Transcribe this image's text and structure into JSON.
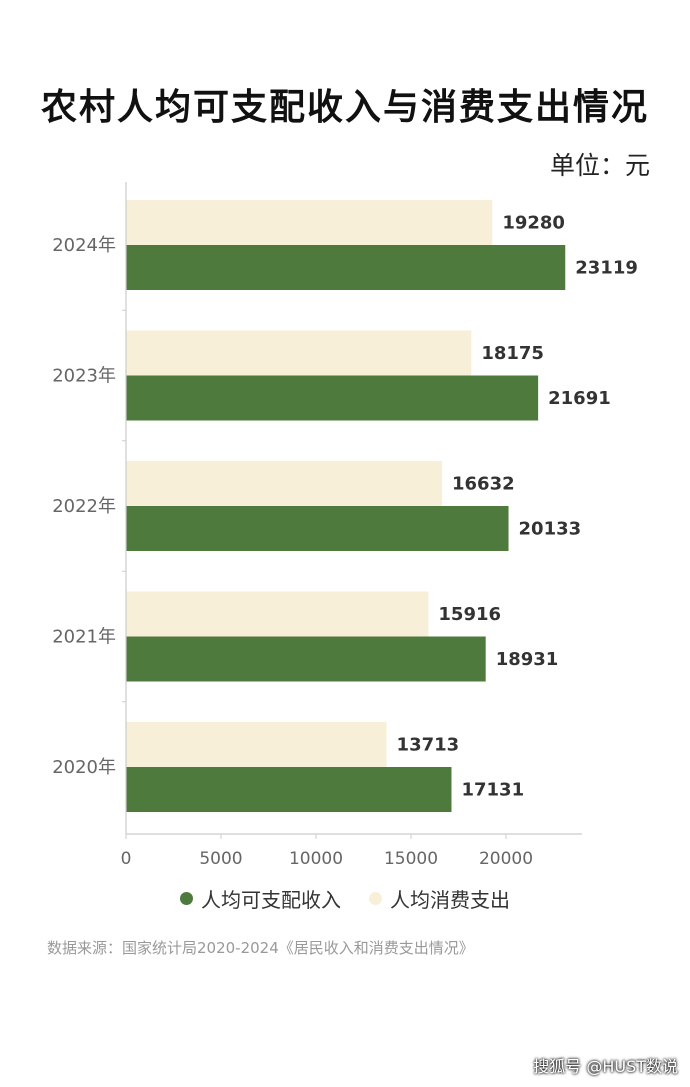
{
  "title": "农村人均可支配收入与消费支出情况",
  "unit_label": "单位：元",
  "source_note": "数据来源：国家统计局2020-2024《居民收入和消费支出情况》",
  "watermark": "搜狐号 @HUST数说",
  "colors": {
    "income": "#4e7a3e",
    "consumption": "#f7efd8",
    "axis": "#cccccc"
  },
  "chart_data": {
    "type": "bar",
    "orientation": "horizontal",
    "categories": [
      "2024年",
      "2023年",
      "2022年",
      "2021年",
      "2020年"
    ],
    "series": [
      {
        "name": "人均消费支出",
        "values": [
          19280,
          18175,
          16632,
          15916,
          13713
        ]
      },
      {
        "name": "人均可支配收入",
        "values": [
          23119,
          21691,
          20133,
          18931,
          17131
        ]
      }
    ],
    "xlim": [
      0,
      24000
    ],
    "xticks": [
      0,
      5000,
      10000,
      15000,
      20000
    ],
    "xlabel": "",
    "ylabel": "",
    "grid": false,
    "legend_position": "bottom",
    "legend": [
      {
        "name": "人均可支配收入",
        "color": "#4e7a3e"
      },
      {
        "name": "人均消费支出",
        "color": "#f7efd8"
      }
    ]
  }
}
